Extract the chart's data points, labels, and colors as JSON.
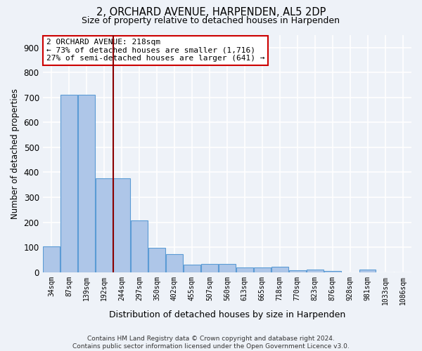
{
  "title": "2, ORCHARD AVENUE, HARPENDEN, AL5 2DP",
  "subtitle": "Size of property relative to detached houses in Harpenden",
  "xlabel": "Distribution of detached houses by size in Harpenden",
  "ylabel": "Number of detached properties",
  "categories": [
    "34sqm",
    "87sqm",
    "139sqm",
    "192sqm",
    "244sqm",
    "297sqm",
    "350sqm",
    "402sqm",
    "455sqm",
    "507sqm",
    "560sqm",
    "613sqm",
    "665sqm",
    "718sqm",
    "770sqm",
    "823sqm",
    "876sqm",
    "928sqm",
    "981sqm",
    "1033sqm",
    "1086sqm"
  ],
  "values": [
    103,
    710,
    712,
    375,
    375,
    207,
    97,
    72,
    30,
    32,
    33,
    20,
    18,
    22,
    8,
    10,
    4,
    0,
    9,
    0,
    0
  ],
  "bar_color": "#aec6e8",
  "bar_edge_color": "#5b9bd5",
  "background_color": "#eef2f8",
  "grid_color": "#ffffff",
  "vline_x": 3.5,
  "vline_color": "#8b0000",
  "annotation_text": "2 ORCHARD AVENUE: 218sqm\n← 73% of detached houses are smaller (1,716)\n27% of semi-detached houses are larger (641) →",
  "annotation_box_color": "#ffffff",
  "annotation_box_edge": "#cc0000",
  "footnote": "Contains HM Land Registry data © Crown copyright and database right 2024.\nContains public sector information licensed under the Open Government Licence v3.0.",
  "ylim": [
    0,
    950
  ],
  "yticks": [
    0,
    100,
    200,
    300,
    400,
    500,
    600,
    700,
    800,
    900
  ]
}
